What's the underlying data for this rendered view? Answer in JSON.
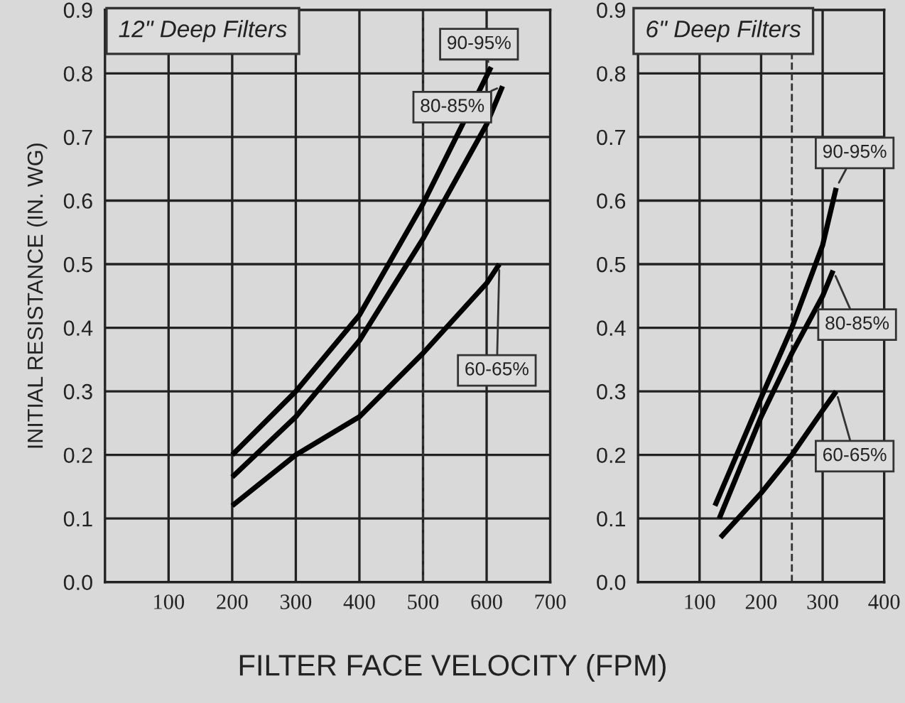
{
  "chart_data": [
    {
      "type": "line",
      "title": "12\" Deep Filters",
      "xlabel": "FILTER FACE VELOCITY (FPM)",
      "ylabel": "INITIAL RESISTANCE (IN. WG)",
      "xlim": [
        0,
        700
      ],
      "xticks": [
        100,
        200,
        300,
        400,
        500,
        600,
        700
      ],
      "ylim": [
        0,
        0.9
      ],
      "yticks": [
        {
          "value": 0,
          "label": "0.0"
        },
        0.1,
        0.2,
        0.3,
        0.4,
        0.5,
        0.6,
        0.7,
        0.8,
        0.9
      ],
      "grid": true,
      "line_style": "solid",
      "marker": "none",
      "ref_lines": [
        {
          "axis": "x",
          "value": 500,
          "line_style": "dashed",
          "color": "#333333"
        }
      ],
      "series": [
        {
          "name": "90-95%",
          "color": "#000000",
          "x": [
            200,
            300,
            400,
            500,
            607
          ],
          "values": [
            0.2,
            0.3,
            0.42,
            0.595,
            0.81
          ]
        },
        {
          "name": "80-85%",
          "color": "#000000",
          "x": [
            200,
            300,
            400,
            500,
            600,
            625
          ],
          "values": [
            0.165,
            0.26,
            0.38,
            0.54,
            0.72,
            0.78
          ]
        },
        {
          "name": "60-65%",
          "color": "#000000",
          "x": [
            200,
            300,
            400,
            500,
            600,
            620
          ],
          "values": [
            0.12,
            0.2,
            0.26,
            0.36,
            0.47,
            0.5
          ]
        }
      ]
    },
    {
      "type": "line",
      "title": "6\" Deep Filters",
      "xlim": [
        0,
        400
      ],
      "xticks": [
        100,
        200,
        300,
        400
      ],
      "ylim": [
        0,
        0.9
      ],
      "yticks": [
        {
          "value": 0,
          "label": "0.0"
        },
        0.1,
        0.2,
        0.3,
        0.4,
        0.5,
        0.6,
        0.7,
        0.8,
        0.9
      ],
      "grid": true,
      "line_style": "solid",
      "marker": "none",
      "ref_lines": [
        {
          "axis": "x",
          "value": 250,
          "line_style": "dashed",
          "color": "#333333"
        }
      ],
      "series": [
        {
          "name": "90-95%",
          "color": "#000000",
          "x": [
            125,
            200,
            250,
            300,
            322
          ],
          "values": [
            0.12,
            0.29,
            0.4,
            0.53,
            0.62
          ]
        },
        {
          "name": "80-85%",
          "color": "#000000",
          "x": [
            132,
            200,
            250,
            300,
            317
          ],
          "values": [
            0.1,
            0.26,
            0.36,
            0.45,
            0.49
          ]
        },
        {
          "name": "60-65%",
          "color": "#000000",
          "x": [
            134,
            200,
            250,
            300,
            322
          ],
          "values": [
            0.07,
            0.14,
            0.2,
            0.27,
            0.3
          ]
        }
      ]
    }
  ]
}
